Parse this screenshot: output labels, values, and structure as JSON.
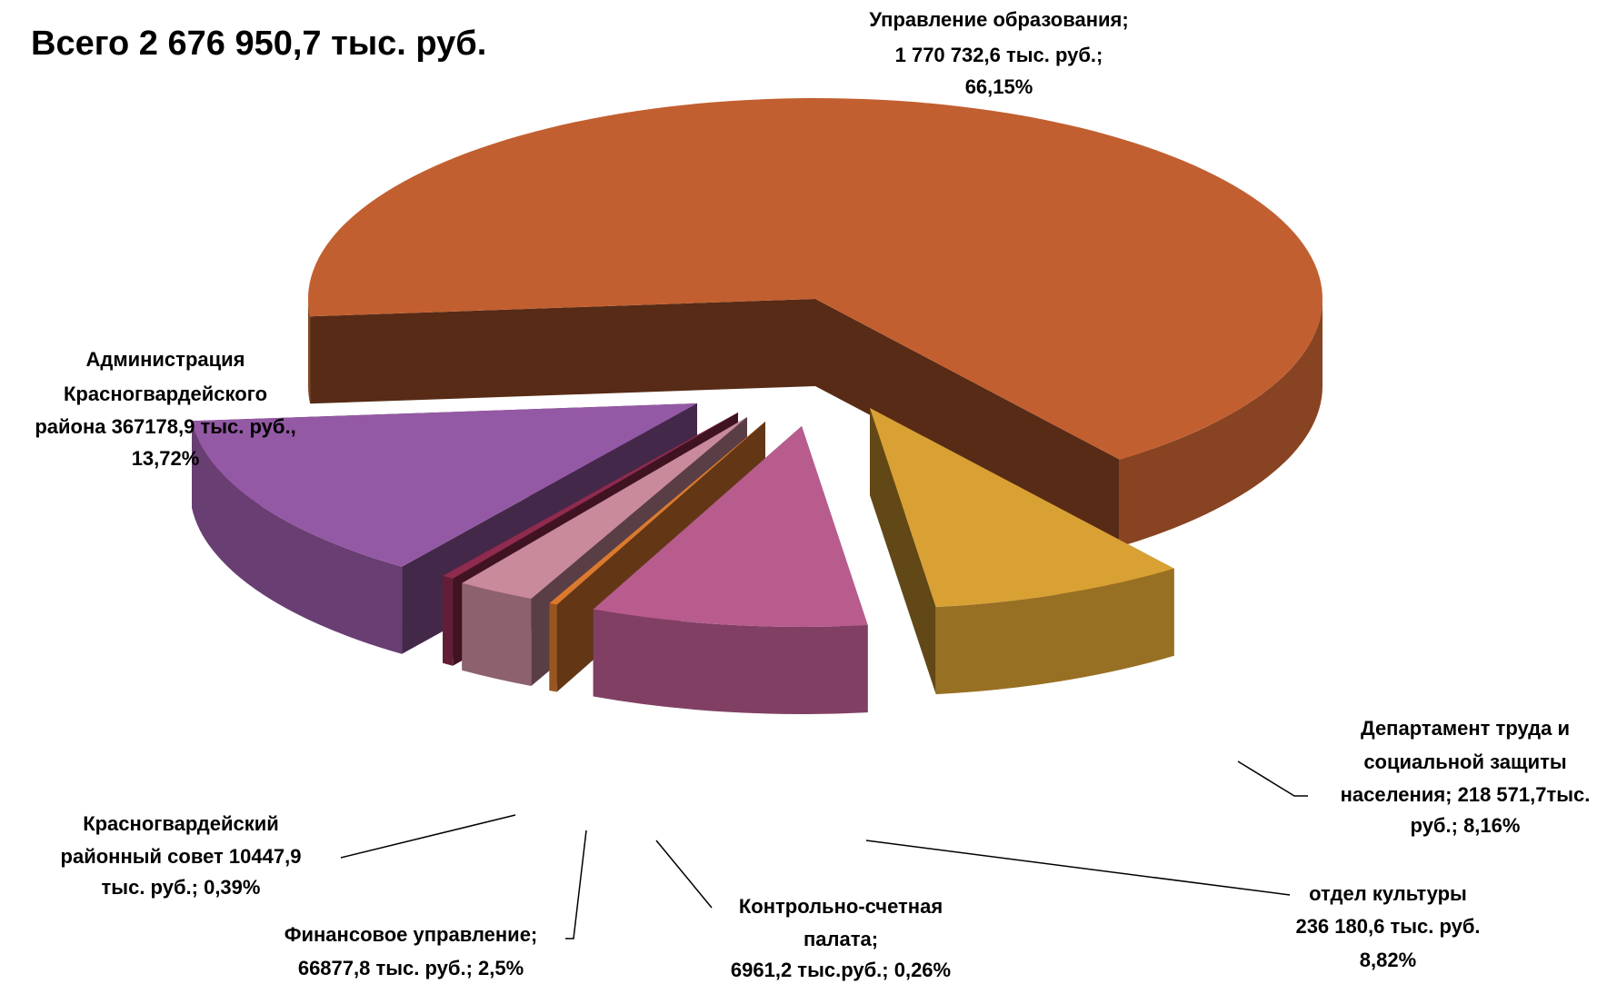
{
  "chart_data": {
    "type": "pie3d",
    "title": "Всего 2 676 950,7 тыс. руб.",
    "values": [
      66.15,
      8.16,
      8.82,
      0.26,
      2.5,
      0.39,
      13.72
    ],
    "colors": [
      "#c25f30",
      "#d9a034",
      "#b85c8e",
      "#db7a2e",
      "#c98a9b",
      "#8e2b4e",
      "#9459a4"
    ],
    "value_labels": [
      [
        "Управление образования;",
        "1 770 732,6 тыс. руб.;",
        "66,15%"
      ],
      [
        "Департамент труда и",
        "социальной защиты",
        "населения;  218 571,7тыс.",
        "руб.; 8,16%"
      ],
      [
        "отдел культуры",
        "236 180,6 тыс. руб.",
        "8,82%"
      ],
      [
        "Контрольно-счетная",
        "палата;",
        "6961,2 тыс.руб.; 0,26%"
      ],
      [
        "Финансовое управление;",
        "66877,8 тыс. руб.; 2,5%"
      ],
      [
        "Красногвардейский",
        "районный совет 10447,9",
        "тыс. руб.;  0,39%"
      ],
      [
        "Администрация",
        "Красногвардейского",
        "района 367178,9 тыс. руб.,",
        "13,72%"
      ]
    ]
  }
}
